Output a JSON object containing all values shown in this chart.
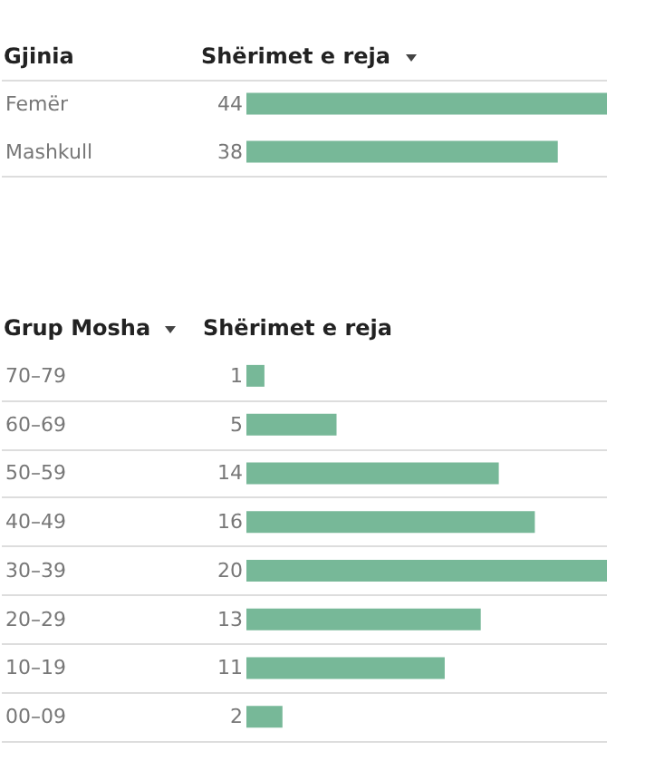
{
  "chart_data": [
    {
      "type": "bar",
      "orientation": "horizontal",
      "ylabel": "Gjinia",
      "xlabel": "Shërimet e reja",
      "categories": [
        "Femër",
        "Mashkull"
      ],
      "values": [
        44,
        38
      ],
      "color": "#77b898",
      "data_labels": true,
      "grid": "y"
    },
    {
      "type": "bar",
      "orientation": "horizontal",
      "ylabel": "Grup Mosha",
      "xlabel": "Shërimet e reja",
      "categories": [
        "70–79",
        "60–69",
        "50–59",
        "40–49",
        "30–39",
        "20–29",
        "10–19",
        "00–09"
      ],
      "values": [
        1,
        5,
        14,
        16,
        20,
        13,
        11,
        2
      ],
      "color": "#77b898",
      "data_labels": true,
      "grid": "y"
    }
  ]
}
